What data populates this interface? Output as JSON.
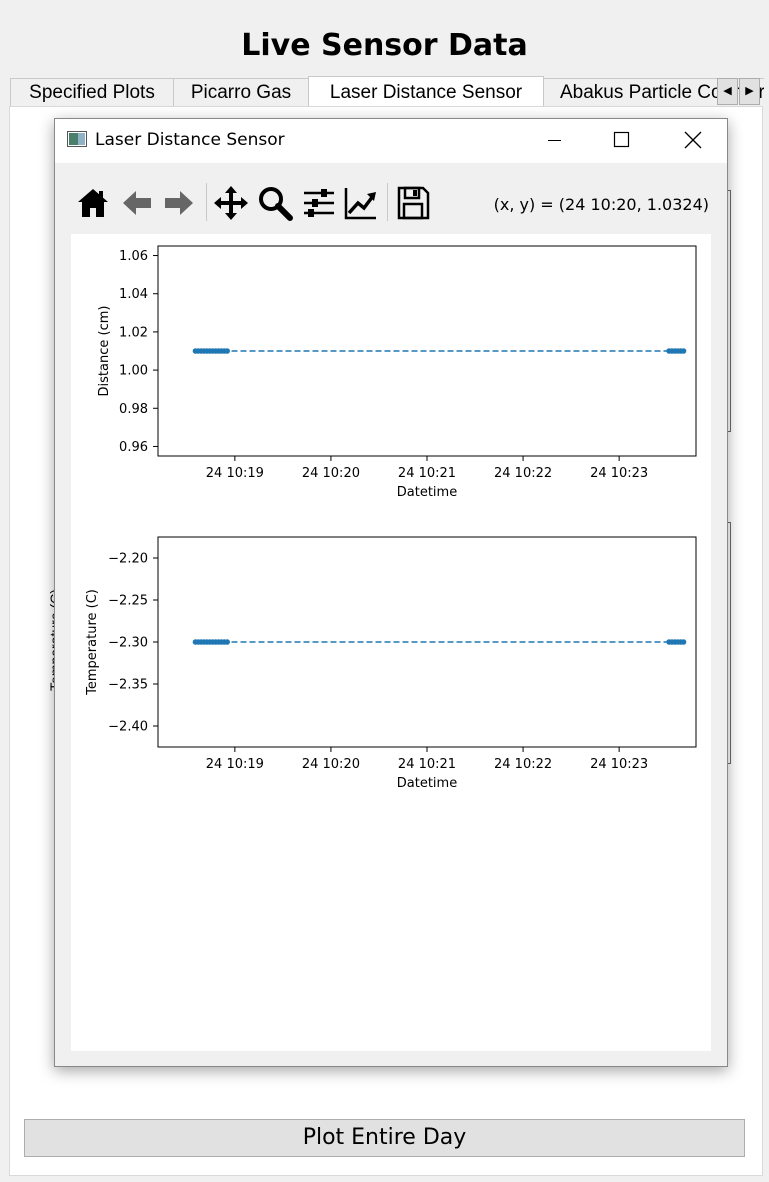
{
  "app": {
    "title": "Live Sensor Data"
  },
  "tabs": [
    {
      "label": "Specified Plots"
    },
    {
      "label": "Picarro Gas"
    },
    {
      "label": "Laser Distance Sensor"
    },
    {
      "label": "Abakus Particle Counter"
    }
  ],
  "background": {
    "ylabel": "Temperature (C)"
  },
  "bottom": {
    "plot_entire_day": "Plot Entire Day"
  },
  "window": {
    "title": "Laser Distance Sensor",
    "toolbar": {
      "buttons": [
        "home-icon",
        "back-arrow-icon",
        "forward-arrow-icon",
        "pan-icon",
        "zoom-icon",
        "configure-subplots-icon",
        "edit-axes-icon",
        "save-icon"
      ],
      "coord_readout": "(x, y) = (24 10:20, 1.0324)"
    }
  },
  "colors": {
    "series": "#1f77b4",
    "tab_active_bg": "#ffffff"
  },
  "chart_data": [
    {
      "type": "line",
      "line_style": "dashed",
      "marker": "dot",
      "xlabel": "Datetime",
      "ylabel": "Distance (cm)",
      "x_ticks": [
        "24 10:19",
        "24 10:20",
        "24 10:21",
        "24 10:22",
        "24 10:23"
      ],
      "x_tick_minutes": [
        19,
        20,
        21,
        22,
        23
      ],
      "xlim_minutes": [
        18.2,
        23.8
      ],
      "ylim": [
        0.955,
        1.065
      ],
      "y_ticks": [
        1.06,
        1.04,
        1.02,
        1.0,
        0.98,
        0.96
      ],
      "y_tick_labels": [
        "1.06",
        "1.04",
        "1.02",
        "1.00",
        "0.98",
        "0.96"
      ],
      "series": [
        {
          "x_minutes": [
            18.59,
            18.62,
            18.65,
            18.68,
            18.71,
            18.74,
            18.77,
            18.8,
            18.83,
            18.86,
            18.89,
            18.92,
            23.52,
            23.55,
            23.58,
            23.61,
            23.64,
            23.67
          ],
          "values": [
            1.01,
            1.01,
            1.01,
            1.01,
            1.01,
            1.01,
            1.01,
            1.01,
            1.01,
            1.01,
            1.01,
            1.01,
            1.01,
            1.01,
            1.01,
            1.01,
            1.01,
            1.01
          ]
        }
      ]
    },
    {
      "type": "line",
      "line_style": "dashed",
      "marker": "dot",
      "xlabel": "Datetime",
      "ylabel": "Temperature (C)",
      "x_ticks": [
        "24 10:19",
        "24 10:20",
        "24 10:21",
        "24 10:22",
        "24 10:23"
      ],
      "x_tick_minutes": [
        19,
        20,
        21,
        22,
        23
      ],
      "xlim_minutes": [
        18.2,
        23.8
      ],
      "ylim": [
        -2.425,
        -2.175
      ],
      "y_ticks": [
        -2.2,
        -2.25,
        -2.3,
        -2.35,
        -2.4
      ],
      "y_tick_labels": [
        "−2.20",
        "−2.25",
        "−2.30",
        "−2.35",
        "−2.40"
      ],
      "series": [
        {
          "x_minutes": [
            18.59,
            18.62,
            18.65,
            18.68,
            18.71,
            18.74,
            18.77,
            18.8,
            18.83,
            18.86,
            18.89,
            18.92,
            23.52,
            23.55,
            23.58,
            23.61,
            23.64,
            23.67
          ],
          "values": [
            -2.3,
            -2.3,
            -2.3,
            -2.3,
            -2.3,
            -2.3,
            -2.3,
            -2.3,
            -2.3,
            -2.3,
            -2.3,
            -2.3,
            -2.3,
            -2.3,
            -2.3,
            -2.3,
            -2.3,
            -2.3
          ]
        }
      ]
    }
  ]
}
